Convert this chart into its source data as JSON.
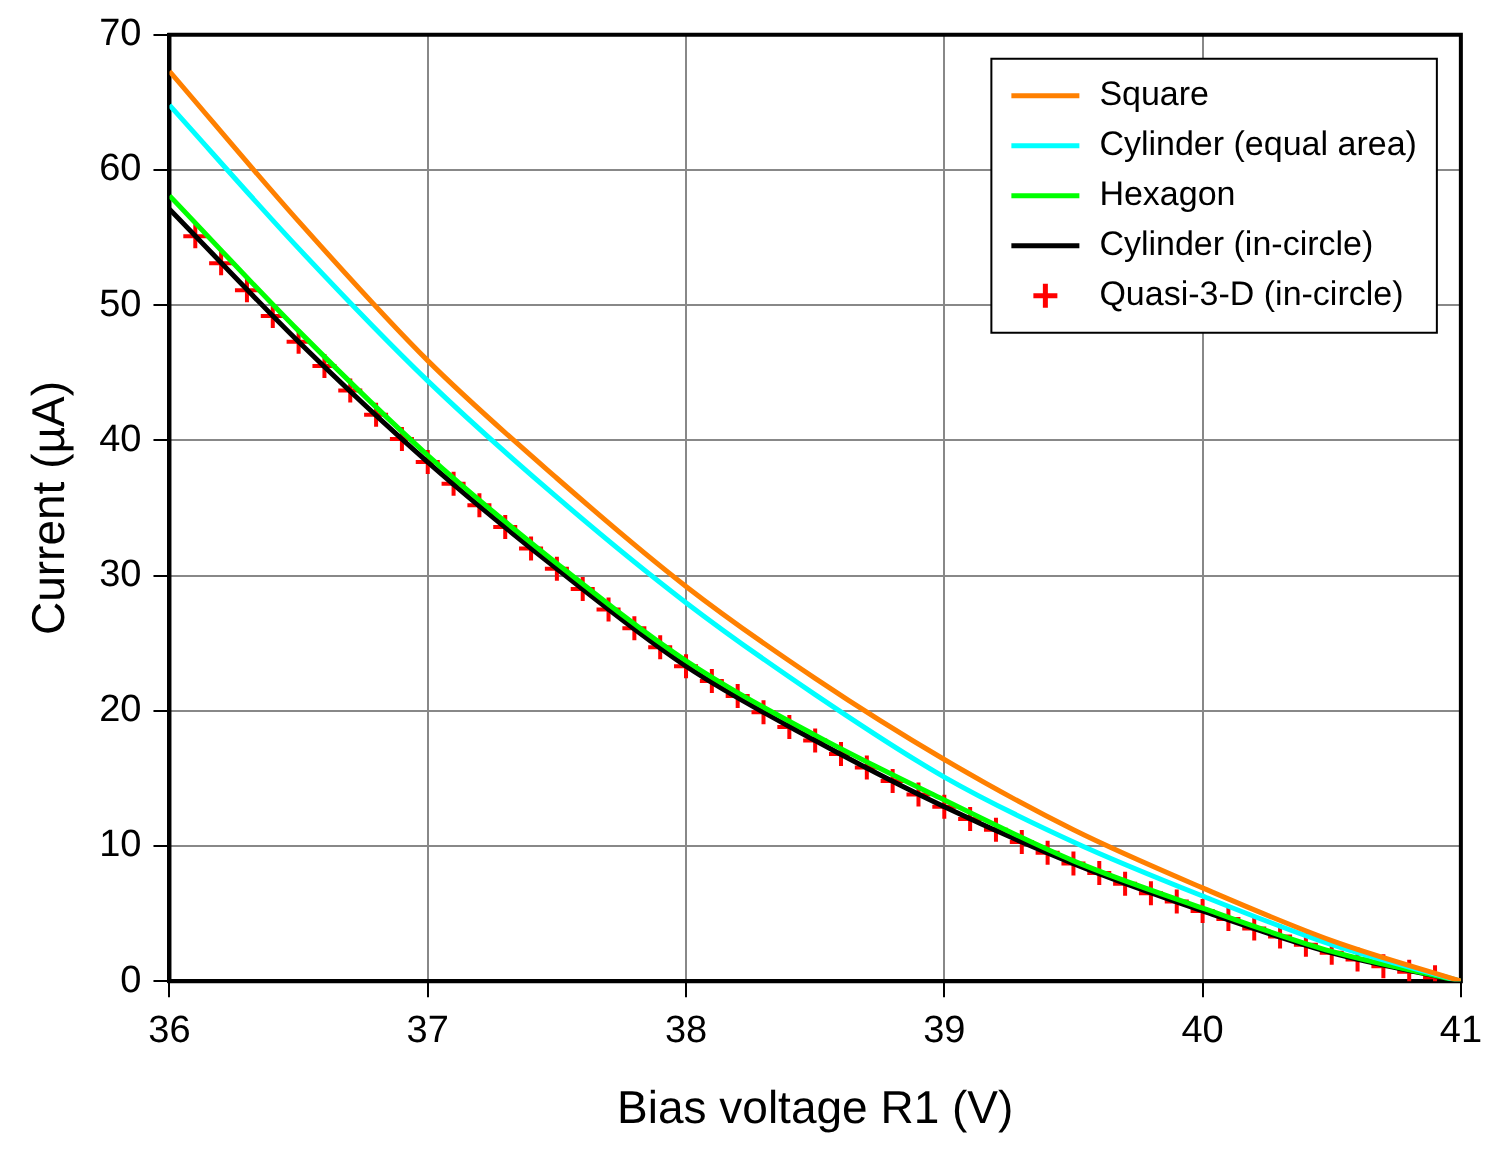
{
  "chart_data": {
    "type": "line",
    "xlabel": "Bias voltage R1 (V)",
    "ylabel": "Current (µA)",
    "xlim": [
      36,
      41
    ],
    "xticks": [
      36,
      37,
      38,
      39,
      40,
      41
    ],
    "ylim": [
      0,
      70
    ],
    "yticks": [
      0,
      10,
      20,
      30,
      40,
      50,
      60,
      70
    ],
    "grid": true,
    "legend": "top right",
    "line_style": "solid",
    "series": [
      {
        "name": "Square",
        "color": "#ff8000",
        "marker": "none",
        "x": [
          36,
          36.5,
          37,
          37.5,
          38,
          38.5,
          39,
          39.5,
          40,
          40.5,
          41
        ],
        "values": [
          67.3,
          56.2,
          45.9,
          37.2,
          29.2,
          22.4,
          16.4,
          11.2,
          6.9,
          3.0,
          0
        ]
      },
      {
        "name": "Cylinder (equal area)",
        "color": "#00ffff",
        "marker": "none",
        "x": [
          36,
          36.5,
          37,
          37.5,
          38,
          38.5,
          39,
          39.5,
          40,
          40.5,
          41
        ],
        "values": [
          64.8,
          54.2,
          44.4,
          35.8,
          28,
          21.2,
          15.1,
          10.3,
          6.3,
          2.7,
          0
        ]
      },
      {
        "name": "Hexagon",
        "color": "#00ff00",
        "marker": "none",
        "x": [
          36,
          36.5,
          37,
          37.5,
          38,
          38.5,
          39,
          39.5,
          40,
          40.5,
          41
        ],
        "values": [
          58.1,
          48.1,
          38.9,
          30.9,
          23.7,
          18.2,
          13.4,
          8.9,
          5.4,
          2.2,
          0
        ]
      },
      {
        "name": "Cylinder (in-circle)",
        "color": "#000000",
        "marker": "none",
        "x": [
          36,
          36.5,
          37,
          37.5,
          38,
          38.5,
          39,
          39.5,
          40,
          40.5,
          41
        ],
        "values": [
          57.1,
          47.3,
          38.4,
          30.5,
          23.3,
          17.8,
          12.9,
          8.7,
          5.2,
          2.1,
          0
        ]
      },
      {
        "name": "Quasi-3-D (in-circle)",
        "type": "scatter",
        "color": "#ff0000",
        "marker": "cross",
        "x": [
          36.1,
          36.2,
          36.3,
          36.4,
          36.5,
          36.6,
          36.7,
          36.8,
          36.9,
          37.0,
          37.1,
          37.2,
          37.3,
          37.4,
          37.5,
          37.6,
          37.7,
          37.8,
          37.9,
          38.0,
          38.1,
          38.2,
          38.3,
          38.4,
          38.5,
          38.6,
          38.7,
          38.8,
          38.9,
          39.0,
          39.1,
          39.2,
          39.3,
          39.4,
          39.5,
          39.6,
          39.7,
          39.8,
          39.9,
          40.0,
          40.1,
          40.2,
          40.3,
          40.4,
          40.5,
          40.6,
          40.7,
          40.8,
          40.9
        ],
        "values": [
          55.1,
          53.1,
          51.1,
          49.2,
          47.3,
          45.5,
          43.7,
          41.9,
          40.1,
          38.4,
          36.8,
          35.2,
          33.6,
          32.0,
          30.5,
          29.0,
          27.5,
          26.1,
          24.7,
          23.3,
          22.2,
          21.1,
          19.9,
          18.8,
          17.8,
          16.8,
          15.8,
          14.8,
          13.8,
          12.9,
          12.0,
          11.2,
          10.3,
          9.5,
          8.7,
          8.0,
          7.2,
          6.5,
          5.9,
          5.2,
          4.6,
          3.9,
          3.3,
          2.7,
          2.1,
          1.6,
          1.1,
          0.7,
          0.3
        ]
      }
    ]
  }
}
